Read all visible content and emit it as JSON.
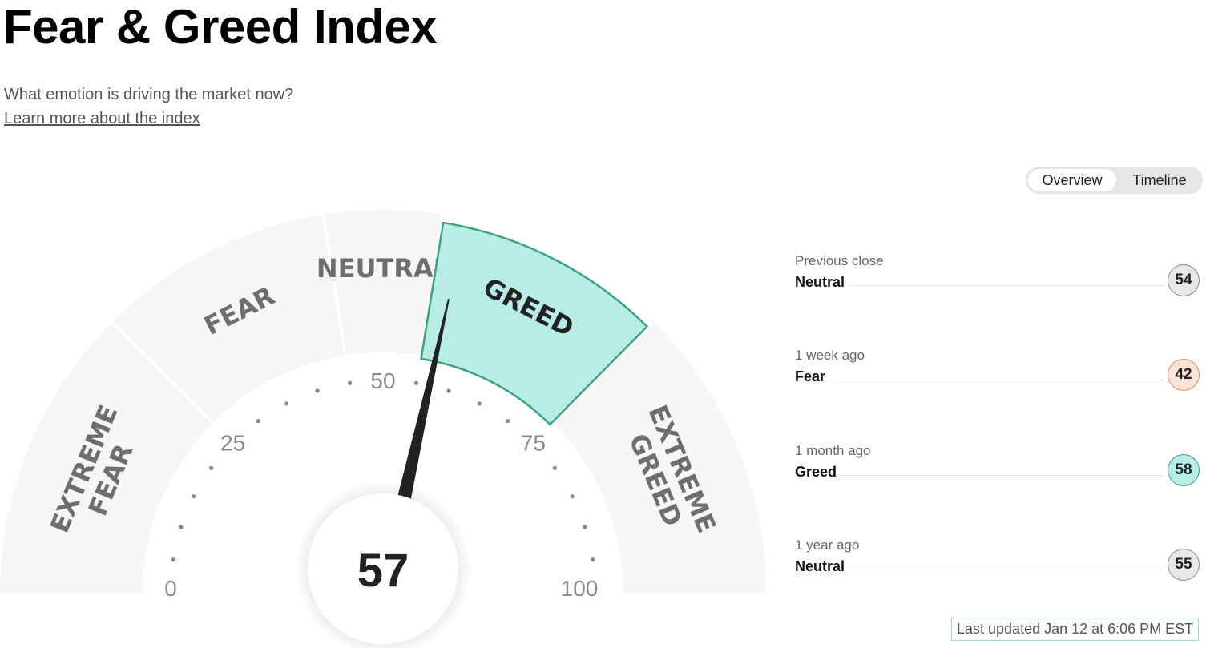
{
  "header": {
    "title": "Fear & Greed Index",
    "subtitle": "What emotion is driving the market now?",
    "learn_link": "Learn more about the index"
  },
  "tabs": {
    "overview": "Overview",
    "timeline": "Timeline",
    "active": "Overview"
  },
  "gauge": {
    "score": "57",
    "value": 57,
    "zones": [
      {
        "lines": [
          "EXTREME",
          "FEAR"
        ],
        "from": 0,
        "to": 25
      },
      {
        "lines": [
          "FEAR"
        ],
        "from": 25,
        "to": 45
      },
      {
        "lines": [
          "NEUTRAL"
        ],
        "from": 45,
        "to": 55
      },
      {
        "lines": [
          "GREED"
        ],
        "from": 55,
        "to": 75,
        "active": true
      },
      {
        "lines": [
          "EXTREME",
          "GREED"
        ],
        "from": 75,
        "to": 100
      }
    ],
    "tick_labels": [
      "0",
      "25",
      "50",
      "75",
      "100"
    ],
    "active_color": "#b8ece7",
    "active_stroke": "#3aa37a",
    "zone_color": "#f6f6f6"
  },
  "history": [
    {
      "period": "Previous close",
      "rating": "Neutral",
      "value": "54",
      "color": "#e8e8e8",
      "border": "#8a8a8a"
    },
    {
      "period": "1 week ago",
      "rating": "Fear",
      "value": "42",
      "color": "#fde4d8",
      "border": "#e08a66"
    },
    {
      "period": "1 month ago",
      "rating": "Greed",
      "value": "58",
      "color": "#b8ece7",
      "border": "#3aa37a"
    },
    {
      "period": "1 year ago",
      "rating": "Neutral",
      "value": "55",
      "color": "#e8e8e8",
      "border": "#8a8a8a"
    }
  ],
  "last_updated": "Last updated Jan 12 at 6:06 PM EST"
}
